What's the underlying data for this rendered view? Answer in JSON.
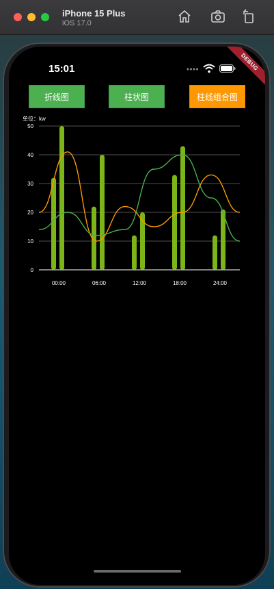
{
  "simulator": {
    "device_name": "iPhone 15 Plus",
    "os_version": "iOS 17.0",
    "icons": [
      "home-icon",
      "screenshot-icon",
      "rotate-icon"
    ]
  },
  "status_bar": {
    "time": "15:01",
    "icons": [
      "signal-icon",
      "wifi-icon",
      "battery-icon"
    ]
  },
  "debug_banner": "DEBUG",
  "buttons": [
    {
      "label": "折线图",
      "color": "#4caf50"
    },
    {
      "label": "柱状图",
      "color": "#4caf50"
    },
    {
      "label": "柱线组合图",
      "color": "#ff9800"
    }
  ],
  "chart_data": {
    "type": "bar+line",
    "unit_label": "单位：kw",
    "y_ticks": [
      "0",
      "10",
      "20",
      "30",
      "40",
      "50"
    ],
    "ylim": [
      0,
      50
    ],
    "x_ticks": [
      "00:00",
      "06:00",
      "12:00",
      "18:00",
      "24:00"
    ],
    "bar_color": "#7cb518",
    "bar_groups": [
      {
        "label": "00:00",
        "values": [
          32,
          50
        ]
      },
      {
        "label": "06:00",
        "values": [
          22,
          40
        ]
      },
      {
        "label": "12:00",
        "values": [
          12,
          20
        ]
      },
      {
        "label": "18:00",
        "values": [
          33,
          43
        ]
      },
      {
        "label": "24:00",
        "values": [
          12,
          21
        ]
      }
    ],
    "series": [
      {
        "color": "#ff9800",
        "values": [
          20,
          41,
          10,
          22,
          15,
          20,
          33,
          20
        ]
      },
      {
        "color": "#4caf50",
        "values": [
          14,
          20,
          12,
          14,
          35,
          40,
          25,
          10
        ]
      }
    ],
    "grid": true
  }
}
